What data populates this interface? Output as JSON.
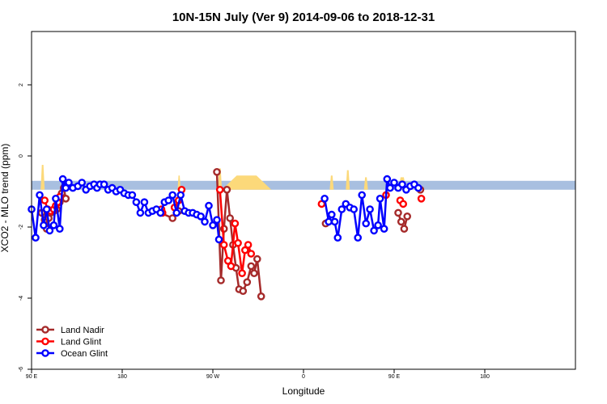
{
  "chart_data": {
    "type": "line",
    "title": "10N-15N July (Ver 9)   2014-09-06 to 2018-12-31",
    "xlabel": "Longitude",
    "ylabel": "XCO2 - MLO trend (ppm)",
    "xlim": [
      -90,
      180
    ],
    "ylim": [
      -6,
      3.5
    ],
    "xticks": [
      {
        "value": -90,
        "label": "90 E"
      },
      {
        "value": -45,
        "label": "180"
      },
      {
        "value": 0,
        "label": "90 W"
      },
      {
        "value": 45,
        "label": "0"
      },
      {
        "value": 90,
        "label": "90 E"
      },
      {
        "value": 135,
        "label": "180"
      }
    ],
    "yticks": [
      {
        "value": -6,
        "label": "-6"
      },
      {
        "value": -4,
        "label": "-4"
      },
      {
        "value": -2,
        "label": "-2"
      },
      {
        "value": 0,
        "label": "0"
      },
      {
        "value": 2,
        "label": "2"
      }
    ],
    "grid": false,
    "legend_position": "bottom-left",
    "band": {
      "y_bottom": -0.95,
      "y_top": -0.7,
      "color": "#a8bfe0",
      "land_color": "#fcd97a"
    },
    "series": [
      {
        "name": "Land Nadir",
        "color": "#a52a2a",
        "segments": [
          [
            [
              -85,
              -1.6
            ],
            [
              -83.5,
              -1.8
            ],
            [
              -82.5,
              -2.05
            ],
            [
              -81.5,
              -1.75
            ],
            [
              -80.5,
              -1.6
            ],
            [
              -79,
              -1.55
            ],
            [
              -77.5,
              -1.5
            ],
            [
              -76,
              -1.3
            ],
            [
              -75,
              -1.05
            ],
            [
              -74,
              -0.9
            ],
            [
              -73,
              -1.2
            ]
          ],
          [
            [
              -26,
              -1.6
            ],
            [
              -20,
              -1.75
            ],
            [
              -17,
              -1.55
            ]
          ],
          [
            [
              2,
              -0.45
            ],
            [
              4,
              -3.5
            ],
            [
              5.5,
              -2.05
            ],
            [
              7,
              -0.95
            ],
            [
              8.5,
              -1.75
            ],
            [
              10,
              -2.5
            ],
            [
              11.5,
              -3.15
            ],
            [
              13,
              -3.75
            ],
            [
              15,
              -3.8
            ],
            [
              17,
              -3.55
            ],
            [
              19,
              -3.1
            ],
            [
              20.5,
              -3.3
            ],
            [
              22,
              -2.9
            ],
            [
              24,
              -3.95
            ]
          ],
          [
            [
              56,
              -1.9
            ]
          ],
          [
            [
              92,
              -1.6
            ],
            [
              93.5,
              -1.85
            ],
            [
              95,
              -2.05
            ],
            [
              96.5,
              -1.7
            ]
          ],
          [
            [
              103,
              -0.95
            ]
          ]
        ]
      },
      {
        "name": "Land Glint",
        "color": "#ff0000",
        "segments": [
          [
            [
              -83.5,
              -1.25
            ],
            [
              -82,
              -1.5
            ],
            [
              -80.5,
              -1.55
            ],
            [
              -79,
              -1.5
            ],
            [
              -78,
              -1.4
            ],
            [
              -77,
              -1.3
            ],
            [
              -76,
              -1.15
            ]
          ],
          [
            [
              -25.5,
              -1.5
            ],
            [
              -25,
              -1.6
            ]
          ],
          [
            [
              -19,
              -1.45
            ],
            [
              -17,
              -1.25
            ],
            [
              -15.5,
              -0.95
            ]
          ],
          [
            [
              3.5,
              -0.95
            ],
            [
              5.5,
              -2.5
            ],
            [
              7.5,
              -2.95
            ],
            [
              9,
              -3.1
            ],
            [
              11,
              -1.9
            ],
            [
              12.5,
              -2.45
            ],
            [
              14.5,
              -3.3
            ],
            [
              16,
              -2.65
            ],
            [
              17.5,
              -2.5
            ],
            [
              19,
              -2.75
            ]
          ],
          [
            [
              54,
              -1.35
            ]
          ],
          [
            [
              86,
              -1.1
            ]
          ],
          [
            [
              93,
              -1.25
            ],
            [
              94.5,
              -1.35
            ]
          ],
          [
            [
              103.5,
              -1.2
            ]
          ]
        ]
      },
      {
        "name": "Ocean Glint",
        "color": "#0000ff",
        "segments": [
          [
            [
              -90,
              -1.5
            ],
            [
              -88,
              -2.3
            ],
            [
              -86,
              -1.1
            ],
            [
              -84,
              -1.95
            ],
            [
              -82.5,
              -1.5
            ],
            [
              -81,
              -2.1
            ],
            [
              -79,
              -1.95
            ],
            [
              -78,
              -1.2
            ],
            [
              -76,
              -2.05
            ],
            [
              -74.5,
              -0.65
            ],
            [
              -73,
              -0.9
            ],
            [
              -71.5,
              -0.75
            ],
            [
              -69.5,
              -0.9
            ],
            [
              -67,
              -0.85
            ],
            [
              -65,
              -0.75
            ],
            [
              -63,
              -0.95
            ],
            [
              -61,
              -0.85
            ],
            [
              -59,
              -0.8
            ],
            [
              -57.5,
              -0.9
            ],
            [
              -56,
              -0.8
            ],
            [
              -54,
              -0.8
            ],
            [
              -52,
              -0.95
            ],
            [
              -50,
              -0.9
            ],
            [
              -48,
              -1.0
            ],
            [
              -46,
              -0.95
            ],
            [
              -44,
              -1.05
            ],
            [
              -42,
              -1.1
            ],
            [
              -40,
              -1.1
            ],
            [
              -38,
              -1.3
            ],
            [
              -36,
              -1.6
            ],
            [
              -34,
              -1.3
            ],
            [
              -32,
              -1.6
            ],
            [
              -30,
              -1.55
            ],
            [
              -28,
              -1.5
            ],
            [
              -26,
              -1.6
            ],
            [
              -24,
              -1.3
            ],
            [
              -22,
              -1.25
            ],
            [
              -20,
              -1.1
            ],
            [
              -18,
              -1.6
            ],
            [
              -16,
              -1.1
            ],
            [
              -14,
              -1.55
            ],
            [
              -12,
              -1.6
            ],
            [
              -10,
              -1.6
            ],
            [
              -8,
              -1.65
            ],
            [
              -6,
              -1.7
            ],
            [
              -4,
              -1.85
            ],
            [
              -2,
              -1.4
            ],
            [
              0,
              -1.95
            ],
            [
              2,
              -1.8
            ],
            [
              3,
              -2.35
            ]
          ],
          [
            [
              55.5,
              -1.2
            ],
            [
              57.5,
              -1.85
            ],
            [
              59,
              -1.65
            ],
            [
              60.5,
              -1.85
            ],
            [
              62,
              -2.3
            ],
            [
              64,
              -1.5
            ],
            [
              66,
              -1.35
            ],
            [
              68,
              -1.45
            ],
            [
              70,
              -1.5
            ],
            [
              72,
              -2.3
            ],
            [
              74,
              -1.1
            ],
            [
              76,
              -1.9
            ],
            [
              78,
              -1.5
            ],
            [
              80,
              -2.1
            ],
            [
              82,
              -1.95
            ],
            [
              83,
              -1.2
            ],
            [
              85,
              -2.05
            ],
            [
              86.5,
              -0.65
            ],
            [
              88,
              -0.9
            ],
            [
              90,
              -0.75
            ],
            [
              92,
              -0.9
            ],
            [
              94,
              -0.8
            ],
            [
              96,
              -0.95
            ],
            [
              98,
              -0.85
            ],
            [
              100,
              -0.8
            ],
            [
              102,
              -0.9
            ]
          ]
        ]
      }
    ],
    "land_spikes": [
      {
        "x_start": -85.5,
        "x_end": -83.5,
        "y": -0.25
      },
      {
        "x_start": -73.5,
        "x_end": -72.5,
        "y": -0.6
      },
      {
        "x_start": -17.5,
        "x_end": -16,
        "y": -0.55
      },
      {
        "x_start": 2.5,
        "x_end": 4.5,
        "y": -0.35
      },
      {
        "x_start": 4.5,
        "x_end": 29,
        "y": -0.55
      },
      {
        "x_start": 58,
        "x_end": 60,
        "y": -0.55
      },
      {
        "x_start": 66,
        "x_end": 68,
        "y": -0.4
      },
      {
        "x_start": 75,
        "x_end": 77,
        "y": -0.6
      },
      {
        "x_start": 92,
        "x_end": 96,
        "y": -0.6
      }
    ]
  }
}
